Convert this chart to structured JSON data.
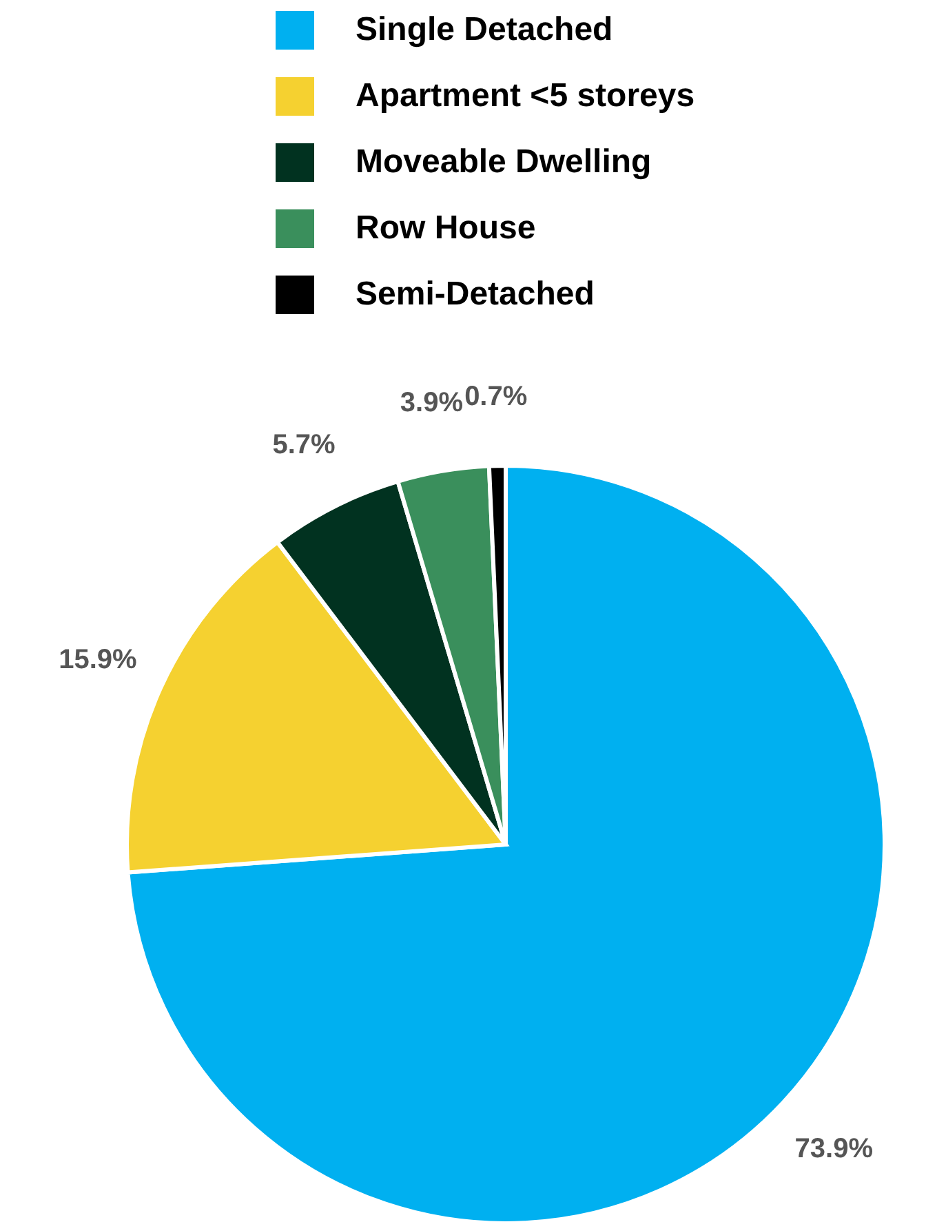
{
  "chart_data": {
    "type": "pie",
    "categories": [
      "Single Detached",
      "Apartment <5 storeys",
      "Moveable Dwelling",
      "Row House",
      "Semi-Detached"
    ],
    "values": [
      73.9,
      15.9,
      5.7,
      3.9,
      0.7
    ],
    "colors": [
      "#00b0f0",
      "#f5d130",
      "#013220",
      "#3a8f5c",
      "#000000"
    ],
    "value_labels": [
      "73.9%",
      "15.9%",
      "5.7%",
      "3.9%",
      "0.7%"
    ],
    "legend": "top"
  }
}
